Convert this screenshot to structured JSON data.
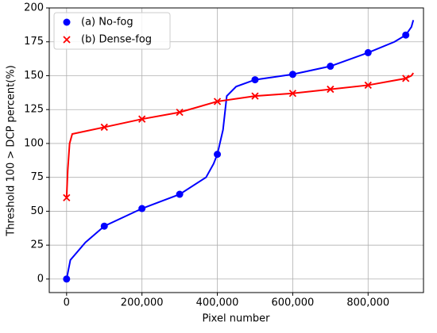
{
  "chart_data": {
    "type": "line",
    "xlabel": "Pixel number",
    "ylabel": "Threshold 100 > DCP percent(%)",
    "xlim": [
      -46000,
      947000
    ],
    "ylim": [
      -10,
      200
    ],
    "xticks": [
      {
        "value": 0,
        "label": "0"
      },
      {
        "value": 200000,
        "label": "200,000"
      },
      {
        "value": 400000,
        "label": "400,000"
      },
      {
        "value": 600000,
        "label": "600,000"
      },
      {
        "value": 800000,
        "label": "800,000"
      }
    ],
    "yticks": [
      0,
      25,
      50,
      75,
      100,
      125,
      150,
      175,
      200
    ],
    "grid": true,
    "legend": "upper left",
    "series": [
      {
        "name": "(a) No-fog",
        "color": "#0000ff",
        "marker": "circle",
        "x": [
          0,
          10000,
          50000,
          100000,
          200000,
          300000,
          370000,
          390000,
          400000,
          415000,
          425000,
          450000,
          500000,
          600000,
          700000,
          800000,
          870000,
          900000,
          915000,
          920000
        ],
        "values": [
          0,
          14,
          27,
          39,
          52,
          62.5,
          75,
          85,
          92,
          110,
          135,
          142,
          147,
          151,
          157,
          167,
          175,
          180,
          186,
          191
        ]
      },
      {
        "name": "(b) Dense-fog",
        "color": "#ff0000",
        "marker": "x",
        "x": [
          0,
          3000,
          8000,
          15000,
          100000,
          200000,
          300000,
          400000,
          500000,
          600000,
          700000,
          800000,
          900000,
          915000,
          920000
        ],
        "values": [
          60,
          80,
          100,
          107,
          112,
          118,
          123,
          131,
          135,
          137,
          140,
          143,
          148,
          150,
          152
        ]
      }
    ]
  }
}
